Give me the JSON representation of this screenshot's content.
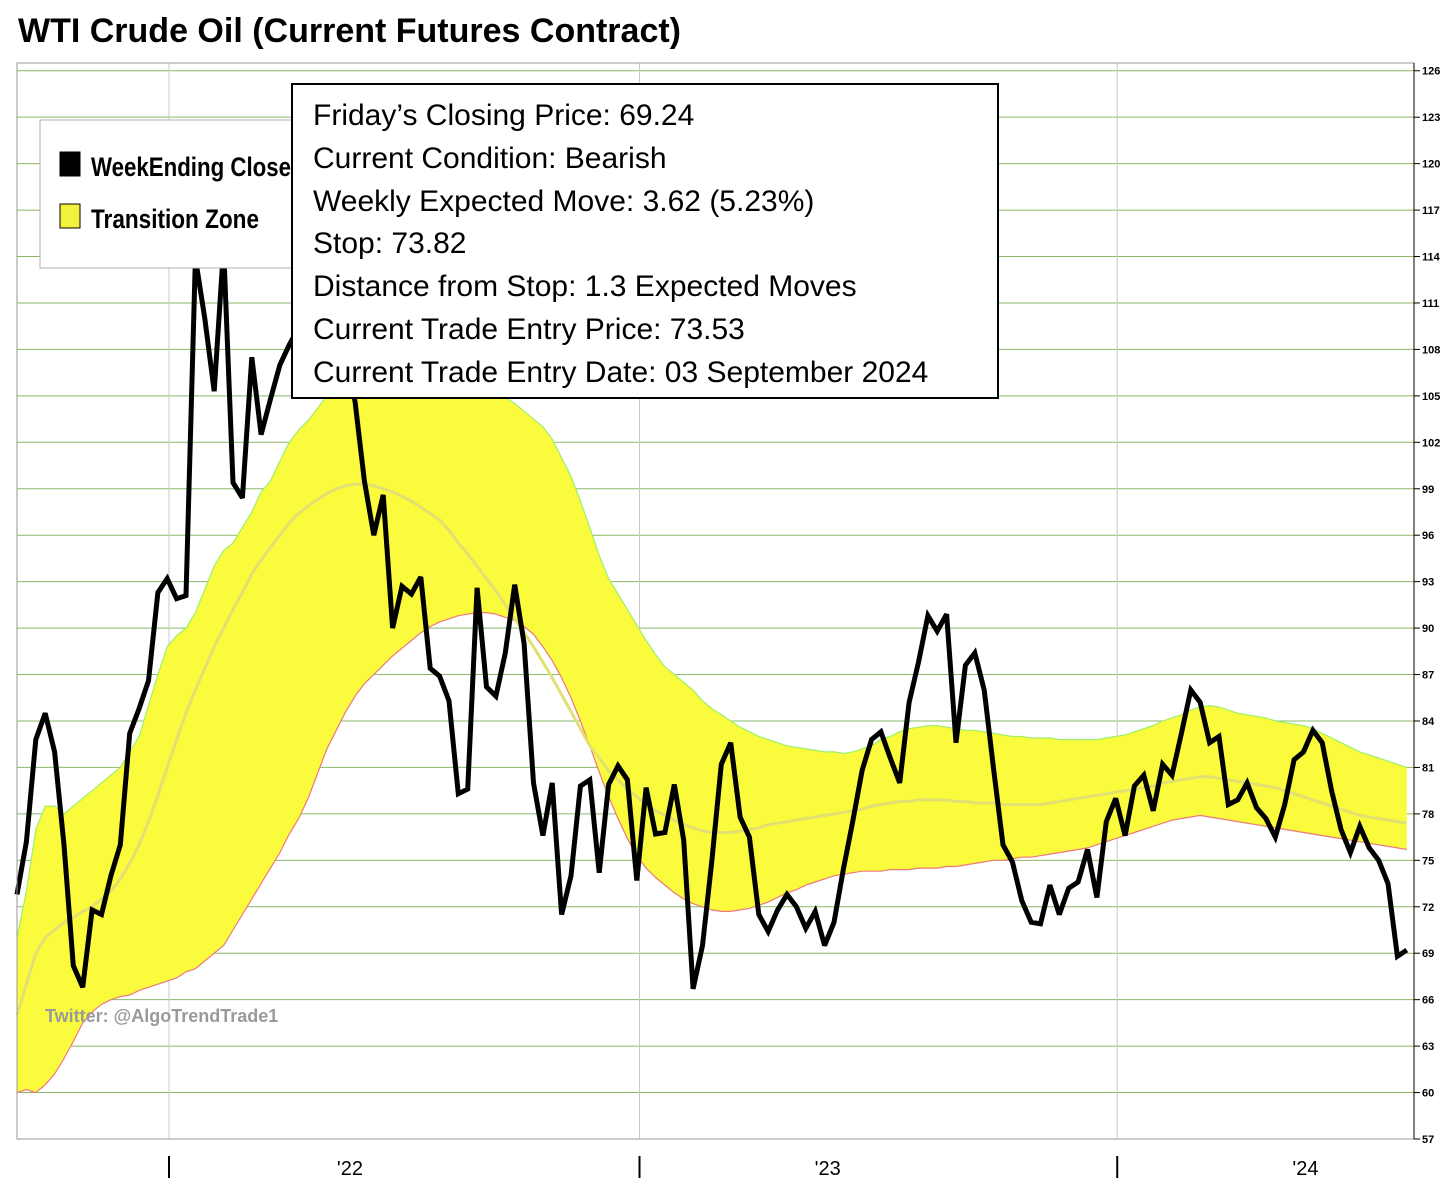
{
  "title": "WTI Crude Oil (Current Futures Contract)",
  "colors": {
    "zone_fill": "#fbfb3e",
    "zone_upper": "#9cf06a",
    "zone_lower": "#ec7a7a",
    "zone_mid": "#e2e070",
    "gridline": "#8aba6a",
    "vgrid": "#c8c8c8",
    "close": "#000000"
  },
  "legend": [
    {
      "label": "WeekEnding Close",
      "color": "#000000"
    },
    {
      "label": "Transition Zone",
      "color": "#f2f23e"
    }
  ],
  "watermark": "Twitter: @AlgoTrendTrade1",
  "info": [
    "Friday’s Closing Price: 69.24",
    "Current Condition: Bearish",
    "Weekly Expected Move: 3.62 (5.23%)",
    "Stop: 73.82",
    "Distance from Stop: 1.3 Expected Moves",
    "Current Trade Entry Price: 73.53",
    "Current Trade Entry Date: 03 September 2024"
  ],
  "chart_data": {
    "type": "line",
    "title": "WTI Crude Oil (Current Futures Contract)",
    "x_unit": "weeks (2021-10 to 2024-09)",
    "x_ticks": [
      {
        "label": "",
        "x": 10.5
      },
      {
        "label": "'22",
        "x": 23
      },
      {
        "label": "",
        "x": 43
      },
      {
        "label": "'23",
        "x": 56
      },
      {
        "label": "",
        "x": 76
      },
      {
        "label": "'24",
        "x": 89
      }
    ],
    "y_ticks": [
      57,
      60,
      63,
      66,
      69,
      72,
      75,
      78,
      81,
      84,
      87,
      90,
      93,
      96,
      99,
      102,
      105,
      108,
      111,
      114,
      117,
      120,
      123,
      126
    ],
    "ylim": [
      57,
      126.5
    ],
    "xlim": [
      0,
      96.5
    ],
    "grid": true,
    "legend_position": "top-left",
    "series": [
      {
        "name": "WeekEnding Close",
        "values": [
          72.8,
          76.2,
          82.8,
          84.5,
          82.0,
          76.0,
          68.2,
          66.8,
          71.8,
          71.5,
          74.0,
          76.0,
          83.2,
          84.8,
          86.6,
          92.3,
          93.2,
          91.9,
          92.1,
          113.9,
          110.0,
          105.3,
          114.6,
          99.4,
          98.4,
          107.5,
          102.5,
          104.8,
          107.0,
          108.3,
          109.4,
          105.4,
          110.2,
          109.5,
          112.0,
          108.0,
          104.6,
          99.5,
          96.0,
          98.6,
          90.0,
          92.7,
          92.2,
          93.3,
          87.4,
          86.9,
          85.3,
          79.3,
          79.6,
          92.6,
          86.2,
          85.6,
          88.4,
          92.8,
          89.0,
          80.0,
          76.6,
          80.0,
          71.5,
          74.0,
          79.8,
          80.2,
          74.2,
          79.9,
          81.1,
          80.2,
          73.7,
          79.7,
          76.7,
          76.8,
          79.9,
          76.3,
          66.7,
          69.5,
          75.0,
          81.2,
          82.6,
          77.8,
          76.5,
          71.5,
          70.4,
          71.8,
          72.8,
          72.0,
          70.6,
          71.7,
          69.5,
          71.0,
          74.4,
          77.5,
          80.8,
          82.8,
          83.3,
          81.6,
          80.0,
          85.2,
          87.8,
          90.8,
          89.8,
          90.9,
          82.6,
          87.6,
          88.4,
          86.0,
          80.9,
          76.0,
          74.9,
          72.4,
          71.0,
          70.9,
          73.4,
          71.5,
          73.2,
          73.6,
          75.7,
          72.6,
          77.5,
          79.0,
          76.6,
          79.8,
          80.5,
          78.2,
          81.2,
          80.5,
          83.2,
          86.0,
          85.2,
          82.6,
          83.0,
          78.6,
          78.9,
          80.0,
          78.4,
          77.7,
          76.5,
          78.6,
          81.5,
          82.0,
          83.4,
          82.6,
          79.5,
          77.0,
          75.5,
          77.2,
          75.8,
          75.0,
          73.5,
          68.8,
          69.2
        ]
      },
      {
        "name": "Transition Zone",
        "upper": [
          70.0,
          73.0,
          77.0,
          78.5,
          78.5,
          78.0,
          78.5,
          79.0,
          79.5,
          80.0,
          80.5,
          81.0,
          82.0,
          83.0,
          85.0,
          87.0,
          88.8,
          89.5,
          90.0,
          91.0,
          92.5,
          94.0,
          95.0,
          95.5,
          96.5,
          97.5,
          98.8,
          99.5,
          100.8,
          102.0,
          102.8,
          103.4,
          104.2,
          105.0,
          105.6,
          106.0,
          106.3,
          106.6,
          106.8,
          107.0,
          107.0,
          107.2,
          107.2,
          107.1,
          107.0,
          106.9,
          106.7,
          106.5,
          106.2,
          105.8,
          105.5,
          105.2,
          104.9,
          104.5,
          104.0,
          103.5,
          103.0,
          102.2,
          101.0,
          99.8,
          98.2,
          96.5,
          94.7,
          93.2,
          92.2,
          91.2,
          90.2,
          89.2,
          88.3,
          87.5,
          87.0,
          86.5,
          86.0,
          85.3,
          84.8,
          84.4,
          84.0,
          83.6,
          83.3,
          83.0,
          82.8,
          82.6,
          82.4,
          82.3,
          82.2,
          82.1,
          82.0,
          82.0,
          81.9,
          82.0,
          82.2,
          82.4,
          82.8,
          83.0,
          83.3,
          83.5,
          83.6,
          83.7,
          83.7,
          83.6,
          83.5,
          83.4,
          83.4,
          83.3,
          83.2,
          83.1,
          83.0,
          83.0,
          82.9,
          82.9,
          82.9,
          82.8,
          82.8,
          82.8,
          82.8,
          82.8,
          82.9,
          83.0,
          83.1,
          83.3,
          83.5,
          83.7,
          84.0,
          84.2,
          84.4,
          84.7,
          84.9,
          85.0,
          84.9,
          84.7,
          84.5,
          84.4,
          84.3,
          84.2,
          84.0,
          83.9,
          83.8,
          83.7,
          83.5,
          83.2,
          82.9,
          82.6,
          82.3,
          82.0,
          81.8,
          81.6,
          81.4,
          81.2,
          81.0
        ],
        "middle": [
          65.0,
          67.0,
          69.0,
          70.0,
          70.5,
          71.0,
          71.3,
          71.7,
          72.0,
          72.5,
          73.0,
          73.8,
          74.8,
          76.0,
          77.5,
          79.2,
          81.0,
          82.8,
          84.5,
          86.0,
          87.4,
          88.8,
          90.0,
          91.2,
          92.3,
          93.5,
          94.4,
          95.2,
          96.0,
          96.8,
          97.4,
          97.9,
          98.3,
          98.7,
          99.0,
          99.2,
          99.3,
          99.3,
          99.2,
          99.0,
          98.8,
          98.5,
          98.2,
          97.8,
          97.4,
          97.0,
          96.3,
          95.5,
          94.8,
          94.0,
          93.2,
          92.4,
          91.5,
          90.6,
          89.7,
          88.8,
          87.8,
          86.8,
          85.7,
          84.6,
          83.5,
          82.4,
          81.6,
          80.8,
          80.2,
          79.6,
          79.1,
          78.6,
          78.2,
          77.9,
          77.6,
          77.3,
          77.1,
          76.9,
          76.8,
          76.8,
          76.8,
          76.9,
          77.0,
          77.1,
          77.3,
          77.4,
          77.5,
          77.6,
          77.7,
          77.8,
          77.9,
          78.0,
          78.1,
          78.2,
          78.3,
          78.5,
          78.6,
          78.7,
          78.8,
          78.8,
          78.9,
          78.9,
          78.9,
          78.9,
          78.8,
          78.8,
          78.7,
          78.7,
          78.7,
          78.6,
          78.6,
          78.6,
          78.6,
          78.6,
          78.7,
          78.8,
          78.9,
          79.0,
          79.1,
          79.2,
          79.3,
          79.4,
          79.5,
          79.6,
          79.7,
          79.8,
          80.0,
          80.1,
          80.2,
          80.3,
          80.4,
          80.4,
          80.3,
          80.2,
          80.1,
          80.0,
          79.9,
          79.8,
          79.7,
          79.5,
          79.3,
          79.1,
          78.9,
          78.7,
          78.5,
          78.3,
          78.1,
          77.9,
          77.8,
          77.7,
          77.6,
          77.5,
          77.4
        ],
        "lower": [
          60.0,
          60.2,
          60.0,
          60.5,
          61.2,
          62.2,
          63.3,
          64.5,
          65.2,
          65.7,
          66.0,
          66.2,
          66.3,
          66.6,
          66.8,
          67.0,
          67.2,
          67.4,
          67.8,
          68.0,
          68.5,
          69.0,
          69.5,
          70.5,
          71.5,
          72.5,
          73.5,
          74.5,
          75.5,
          76.7,
          77.7,
          79.0,
          80.6,
          82.2,
          83.4,
          84.6,
          85.6,
          86.4,
          87.0,
          87.6,
          88.2,
          88.7,
          89.2,
          89.7,
          90.1,
          90.4,
          90.6,
          90.8,
          90.9,
          91.0,
          91.0,
          90.9,
          90.7,
          90.5,
          90.1,
          89.6,
          88.8,
          87.9,
          86.8,
          85.5,
          84.0,
          82.4,
          80.7,
          79.1,
          77.7,
          76.4,
          75.3,
          74.5,
          73.9,
          73.4,
          72.9,
          72.5,
          72.2,
          72.0,
          71.8,
          71.7,
          71.7,
          71.8,
          71.9,
          72.1,
          72.3,
          72.6,
          72.9,
          73.1,
          73.4,
          73.6,
          73.8,
          74.0,
          74.1,
          74.2,
          74.3,
          74.3,
          74.3,
          74.4,
          74.4,
          74.4,
          74.5,
          74.5,
          74.5,
          74.6,
          74.6,
          74.7,
          74.8,
          74.9,
          75.0,
          75.0,
          75.1,
          75.2,
          75.2,
          75.3,
          75.4,
          75.5,
          75.6,
          75.7,
          75.8,
          76.0,
          76.2,
          76.4,
          76.6,
          76.8,
          77.0,
          77.2,
          77.4,
          77.6,
          77.7,
          77.8,
          77.9,
          77.8,
          77.7,
          77.6,
          77.5,
          77.4,
          77.3,
          77.2,
          77.1,
          77.0,
          76.9,
          76.8,
          76.7,
          76.6,
          76.5,
          76.4,
          76.3,
          76.2,
          76.1,
          76.0,
          75.9,
          75.8,
          75.7
        ]
      }
    ]
  }
}
